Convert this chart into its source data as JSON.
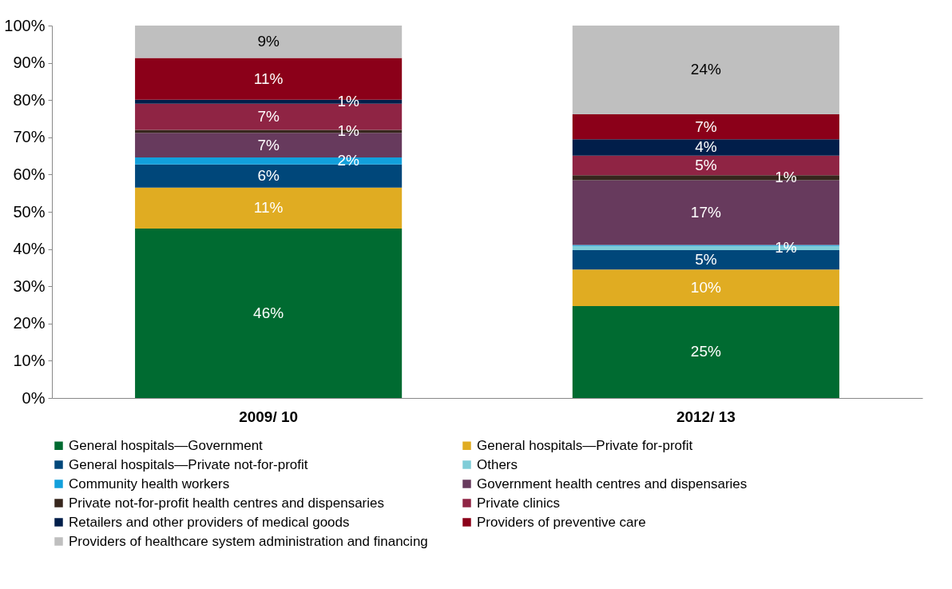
{
  "chart_data": {
    "type": "bar",
    "stacked": true,
    "categories": [
      "2009/ 10",
      "2012/ 13"
    ],
    "ylim": [
      0,
      100
    ],
    "yticks": [
      {
        "value": 0,
        "label": "0%"
      },
      {
        "value": 10,
        "label": "10%"
      },
      {
        "value": 20,
        "label": "20%"
      },
      {
        "value": 30,
        "label": "30%"
      },
      {
        "value": 40,
        "label": "40%"
      },
      {
        "value": 50,
        "label": "50%"
      },
      {
        "value": 60,
        "label": "60%"
      },
      {
        "value": 70,
        "label": "70%"
      },
      {
        "value": 80,
        "label": "80%"
      },
      {
        "value": 90,
        "label": "90%"
      },
      {
        "value": 100,
        "label": "100%"
      }
    ],
    "grid": false,
    "legend": "bottom",
    "series": [
      {
        "name": "General hospitals—Government",
        "color": "#006b31",
        "values": [
          45.5,
          24.7
        ],
        "value_labels": [
          "46%",
          "25%"
        ]
      },
      {
        "name": "General hospitals—Private for-profit",
        "color": "#e0ac22",
        "values": [
          11.0,
          9.8
        ],
        "value_labels": [
          "11%",
          "10%"
        ]
      },
      {
        "name": "General hospitals—Private not-for-profit",
        "color": "#00477a",
        "values": [
          6.2,
          5.2
        ],
        "value_labels": [
          "6%",
          "5%"
        ]
      },
      {
        "name": "Others",
        "color": "#7fcdd8",
        "values": [
          null,
          1.1
        ],
        "value_labels": [
          null,
          "1%"
        ]
      },
      {
        "name": "Community health workers",
        "color": "#12a0dc",
        "values": [
          1.9,
          0.3
        ],
        "value_labels": [
          "2%",
          null
        ]
      },
      {
        "name": "Government health centres and dispensaries",
        "color": "#673a5d",
        "values": [
          6.6,
          17.4
        ],
        "value_labels": [
          "7%",
          "17%"
        ]
      },
      {
        "name": "Private not-for-profit health centres and dispensaries",
        "color": "#37261d",
        "values": [
          0.8,
          1.3
        ],
        "value_labels": [
          "1%",
          "1%"
        ]
      },
      {
        "name": "Private clinics",
        "color": "#8f2444",
        "values": [
          7.0,
          5.3
        ],
        "value_labels": [
          "7%",
          "5%"
        ]
      },
      {
        "name": "Retailers and other providers of medical goods",
        "color": "#011e4a",
        "values": [
          1.1,
          4.4
        ],
        "value_labels": [
          "1%",
          "4%"
        ]
      },
      {
        "name": "Providers of preventive care",
        "color": "#8b0019",
        "values": [
          11.2,
          6.7
        ],
        "value_labels": [
          "11%",
          "7%"
        ]
      },
      {
        "name": "Providers of healthcare system administration and financing",
        "color": "#bfbfbf",
        "values": [
          8.7,
          23.8
        ],
        "value_labels": [
          "9%",
          "24%"
        ]
      }
    ]
  }
}
